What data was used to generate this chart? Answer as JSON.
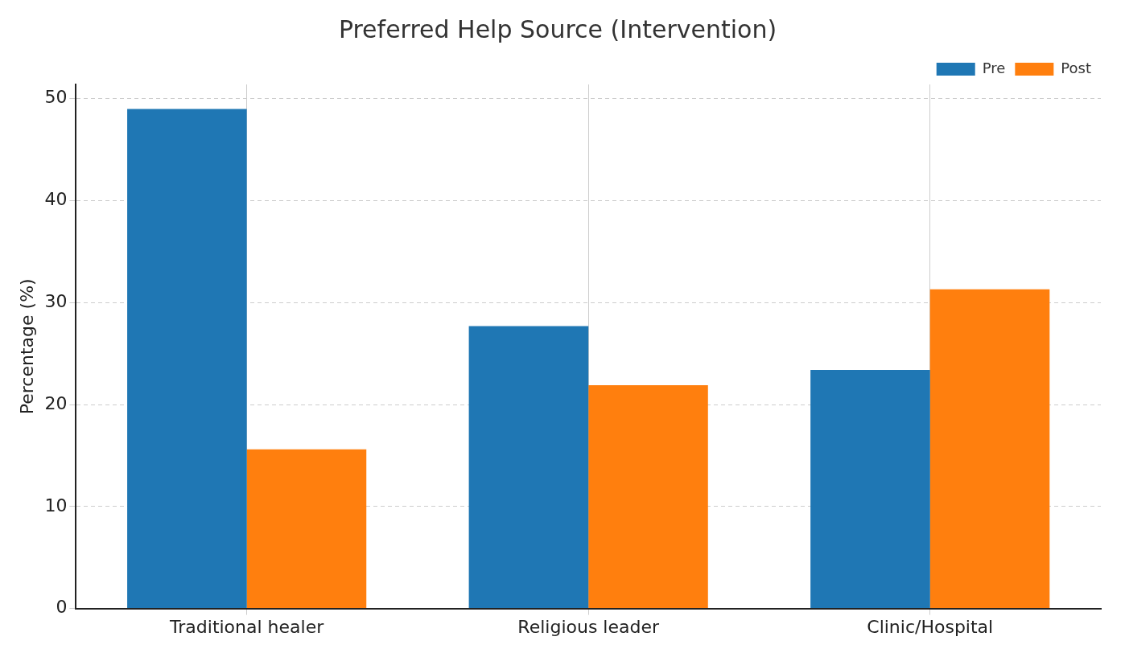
{
  "chart_data": {
    "type": "bar",
    "title": "Preferred Help Source (Intervention)",
    "ylabel": "Percentage (%)",
    "categories": [
      "Traditional healer",
      "Religious leader",
      "Clinic/Hospital"
    ],
    "series": [
      {
        "name": "Pre",
        "color": "#1f77b4",
        "values": [
          49.0,
          27.7,
          23.4
        ]
      },
      {
        "name": "Post",
        "color": "#ff7f0e",
        "values": [
          15.6,
          21.9,
          31.3
        ]
      }
    ],
    "ylim": [
      0,
      51.4
    ],
    "yticks": [
      0,
      10,
      20,
      30,
      40,
      50
    ],
    "grid": true,
    "legend": "top right"
  }
}
